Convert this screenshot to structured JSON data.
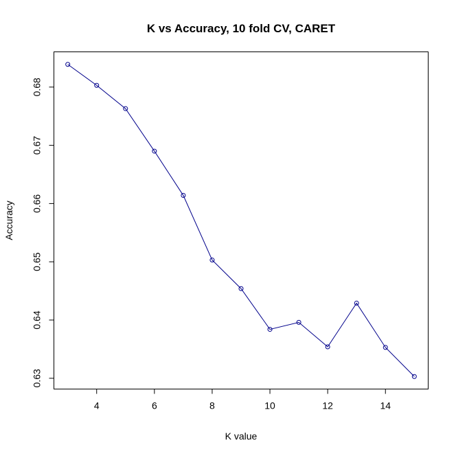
{
  "chart_data": {
    "type": "line",
    "title": "K vs Accuracy, 10 fold CV, CARET",
    "xlabel": "K value",
    "ylabel": "Accuracy",
    "x": [
      3,
      4,
      5,
      6,
      7,
      8,
      9,
      10,
      11,
      12,
      13,
      14,
      15
    ],
    "series": [
      {
        "values": [
          0.6839,
          0.6803,
          0.6763,
          0.669,
          0.6614,
          0.6503,
          0.6454,
          0.6384,
          0.6396,
          0.6354,
          0.6429,
          0.6353,
          0.6303
        ]
      }
    ],
    "xticks": [
      4,
      6,
      8,
      10,
      12,
      14
    ],
    "yticks": [
      0.63,
      0.64,
      0.65,
      0.66,
      0.67,
      0.68
    ],
    "ytick_labels": [
      "0.63",
      "0.64",
      "0.65",
      "0.66",
      "0.67",
      "0.68"
    ],
    "xlim": [
      2.52,
      15.48
    ],
    "ylim": [
      0.62815,
      0.68605
    ],
    "grid": false,
    "line_color": "#00008b",
    "marker": "open-circle"
  }
}
